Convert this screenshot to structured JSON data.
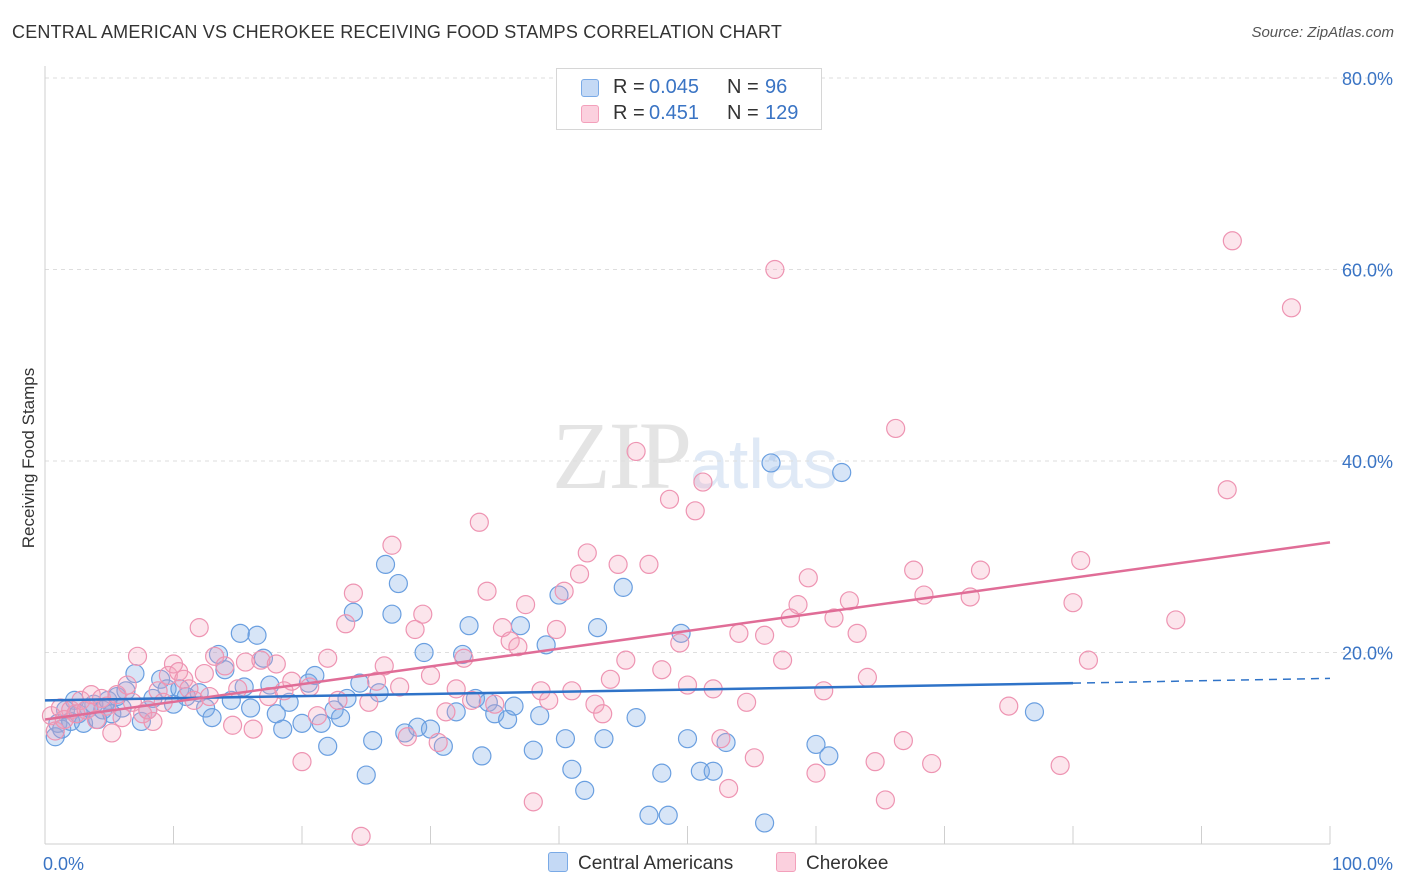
{
  "title": "CENTRAL AMERICAN VS CHEROKEE RECEIVING FOOD STAMPS CORRELATION CHART",
  "source": "Source: ZipAtlas.com",
  "watermark": {
    "zip": "ZIP",
    "atlas": "atlas"
  },
  "legend": {
    "rows": [
      {
        "r_label": "R =",
        "r_value": "0.045",
        "n_label": "N =",
        "n_value": "96",
        "color": "#7aaae6"
      },
      {
        "r_label": "R =",
        "r_value": "0.451",
        "n_label": "N =",
        "n_value": "129",
        "color": "#f3a0bb"
      }
    ]
  },
  "bottom_legend": [
    {
      "label": "Central Americans",
      "color": "#7aaae6"
    },
    {
      "label": "Cherokee",
      "color": "#f3a0bb"
    }
  ],
  "chart_data": {
    "type": "scatter",
    "title": "CENTRAL AMERICAN VS CHEROKEE RECEIVING FOOD STAMPS CORRELATION CHART",
    "xlabel": "",
    "ylabel": "Receiving Food Stamps",
    "xlim": [
      0,
      100
    ],
    "ylim": [
      0,
      80
    ],
    "x_tick_labels": [
      "0.0%",
      "100.0%"
    ],
    "y_tick_labels": [
      "20.0%",
      "40.0%",
      "60.0%",
      "80.0%"
    ],
    "y_ticks": [
      20,
      40,
      60,
      80
    ],
    "grid": "horizontal dashed",
    "legend_position": "top-center",
    "series": [
      {
        "name": "Central Americans",
        "color": "#7aaae6",
        "line_color": "#2f73c8",
        "trend": {
          "x0": 0,
          "y0": 15.0,
          "x1": 80,
          "y1": 16.8,
          "dashed_to": 100,
          "dashed_y": 17.3
        },
        "points": [
          [
            0.8,
            11.2
          ],
          [
            1.0,
            12.6
          ],
          [
            1.3,
            12.0
          ],
          [
            1.6,
            14.0
          ],
          [
            2.0,
            12.8
          ],
          [
            2.3,
            15.0
          ],
          [
            2.6,
            13.6
          ],
          [
            3.0,
            12.6
          ],
          [
            3.4,
            14.2
          ],
          [
            3.8,
            14.6
          ],
          [
            4.1,
            13.0
          ],
          [
            4.5,
            14.0
          ],
          [
            4.9,
            15.0
          ],
          [
            5.2,
            13.6
          ],
          [
            5.6,
            15.4
          ],
          [
            6.0,
            14.2
          ],
          [
            6.3,
            16.0
          ],
          [
            7.0,
            17.8
          ],
          [
            7.5,
            12.8
          ],
          [
            8.0,
            14.0
          ],
          [
            8.4,
            15.2
          ],
          [
            9.0,
            17.2
          ],
          [
            9.5,
            16.2
          ],
          [
            10.0,
            14.6
          ],
          [
            10.5,
            16.2
          ],
          [
            11.0,
            15.4
          ],
          [
            12.0,
            15.8
          ],
          [
            12.5,
            14.2
          ],
          [
            13.0,
            13.2
          ],
          [
            13.5,
            19.8
          ],
          [
            14.0,
            18.2
          ],
          [
            14.5,
            15.0
          ],
          [
            15.2,
            22.0
          ],
          [
            15.5,
            16.4
          ],
          [
            16.0,
            14.2
          ],
          [
            16.5,
            21.8
          ],
          [
            17.0,
            19.4
          ],
          [
            17.5,
            16.6
          ],
          [
            18.0,
            13.6
          ],
          [
            18.5,
            12.0
          ],
          [
            19.0,
            14.8
          ],
          [
            20.0,
            12.6
          ],
          [
            20.5,
            16.8
          ],
          [
            21.0,
            17.6
          ],
          [
            21.5,
            12.6
          ],
          [
            22.0,
            10.2
          ],
          [
            22.5,
            14.0
          ],
          [
            23.0,
            13.2
          ],
          [
            23.5,
            15.2
          ],
          [
            24.0,
            24.2
          ],
          [
            24.5,
            16.8
          ],
          [
            25.0,
            7.2
          ],
          [
            25.5,
            10.8
          ],
          [
            26.0,
            15.8
          ],
          [
            26.5,
            29.2
          ],
          [
            27.0,
            24.0
          ],
          [
            27.5,
            27.2
          ],
          [
            28.0,
            11.6
          ],
          [
            29.0,
            12.2
          ],
          [
            29.5,
            20.0
          ],
          [
            30.0,
            12.0
          ],
          [
            31.0,
            10.2
          ],
          [
            32.0,
            13.8
          ],
          [
            32.5,
            19.8
          ],
          [
            33.0,
            22.8
          ],
          [
            33.5,
            15.2
          ],
          [
            34.0,
            9.2
          ],
          [
            34.5,
            14.8
          ],
          [
            35.0,
            13.6
          ],
          [
            36.0,
            13.0
          ],
          [
            36.5,
            14.4
          ],
          [
            37.0,
            22.8
          ],
          [
            38.0,
            9.8
          ],
          [
            38.5,
            13.4
          ],
          [
            39.0,
            20.8
          ],
          [
            40.0,
            26.0
          ],
          [
            40.5,
            11.0
          ],
          [
            41.0,
            7.8
          ],
          [
            42.0,
            5.6
          ],
          [
            43.0,
            22.6
          ],
          [
            43.5,
            11.0
          ],
          [
            45.0,
            26.8
          ],
          [
            46.0,
            13.2
          ],
          [
            47.0,
            3.0
          ],
          [
            48.0,
            7.4
          ],
          [
            48.5,
            3.0
          ],
          [
            49.5,
            22.0
          ],
          [
            50.0,
            11.0
          ],
          [
            51.0,
            7.6
          ],
          [
            52.0,
            7.6
          ],
          [
            53.0,
            10.6
          ],
          [
            56.0,
            2.2
          ],
          [
            56.5,
            39.8
          ],
          [
            60.0,
            10.4
          ],
          [
            61.0,
            9.2
          ],
          [
            62.0,
            38.8
          ],
          [
            77.0,
            13.8
          ]
        ]
      },
      {
        "name": "Cherokee",
        "color": "#f3a0bb",
        "line_color": "#e06d97",
        "trend": {
          "x0": 0,
          "y0": 13.0,
          "x1": 100,
          "y1": 31.5
        },
        "points": [
          [
            0.5,
            13.4
          ],
          [
            0.8,
            11.8
          ],
          [
            1.2,
            14.2
          ],
          [
            1.5,
            13.0
          ],
          [
            2.0,
            14.0
          ],
          [
            2.4,
            13.6
          ],
          [
            2.8,
            15.0
          ],
          [
            3.2,
            14.0
          ],
          [
            3.6,
            15.6
          ],
          [
            4.0,
            13.0
          ],
          [
            4.4,
            15.2
          ],
          [
            4.8,
            14.4
          ],
          [
            5.2,
            11.6
          ],
          [
            5.6,
            15.6
          ],
          [
            6.0,
            13.2
          ],
          [
            6.4,
            16.6
          ],
          [
            6.8,
            14.8
          ],
          [
            7.2,
            19.6
          ],
          [
            7.6,
            13.6
          ],
          [
            8.0,
            14.0
          ],
          [
            8.4,
            12.8
          ],
          [
            8.8,
            16.0
          ],
          [
            9.2,
            14.8
          ],
          [
            9.6,
            17.6
          ],
          [
            10.0,
            18.8
          ],
          [
            10.4,
            18.0
          ],
          [
            10.8,
            17.2
          ],
          [
            11.2,
            16.2
          ],
          [
            11.6,
            15.0
          ],
          [
            12.0,
            22.6
          ],
          [
            12.4,
            17.8
          ],
          [
            12.8,
            15.4
          ],
          [
            13.2,
            19.6
          ],
          [
            14.0,
            18.6
          ],
          [
            14.6,
            12.4
          ],
          [
            15.0,
            16.2
          ],
          [
            15.6,
            19.0
          ],
          [
            16.2,
            12.0
          ],
          [
            16.8,
            19.2
          ],
          [
            17.4,
            15.4
          ],
          [
            18.0,
            18.8
          ],
          [
            18.6,
            16.0
          ],
          [
            19.2,
            17.0
          ],
          [
            20.0,
            8.6
          ],
          [
            20.6,
            16.4
          ],
          [
            21.2,
            13.4
          ],
          [
            22.0,
            19.4
          ],
          [
            22.8,
            15.0
          ],
          [
            23.4,
            23.0
          ],
          [
            24.0,
            26.2
          ],
          [
            24.6,
            0.8
          ],
          [
            25.2,
            14.8
          ],
          [
            25.8,
            17.0
          ],
          [
            26.4,
            18.6
          ],
          [
            27.0,
            31.2
          ],
          [
            27.6,
            16.4
          ],
          [
            28.2,
            11.2
          ],
          [
            28.8,
            22.4
          ],
          [
            29.4,
            24.0
          ],
          [
            30.0,
            17.6
          ],
          [
            30.6,
            10.6
          ],
          [
            31.2,
            13.8
          ],
          [
            32.0,
            16.2
          ],
          [
            32.6,
            19.4
          ],
          [
            33.2,
            15.0
          ],
          [
            33.8,
            33.6
          ],
          [
            34.4,
            26.4
          ],
          [
            35.0,
            14.6
          ],
          [
            35.6,
            22.6
          ],
          [
            36.2,
            21.2
          ],
          [
            36.8,
            20.6
          ],
          [
            37.4,
            25.0
          ],
          [
            38.0,
            4.4
          ],
          [
            38.6,
            16.0
          ],
          [
            39.2,
            15.0
          ],
          [
            39.8,
            22.4
          ],
          [
            40.4,
            26.4
          ],
          [
            41.0,
            16.0
          ],
          [
            41.6,
            28.2
          ],
          [
            42.2,
            30.4
          ],
          [
            42.8,
            14.6
          ],
          [
            43.4,
            13.6
          ],
          [
            44.0,
            17.2
          ],
          [
            44.6,
            29.2
          ],
          [
            45.2,
            19.2
          ],
          [
            46.0,
            41.0
          ],
          [
            47.0,
            29.2
          ],
          [
            48.0,
            18.2
          ],
          [
            48.6,
            36.0
          ],
          [
            49.4,
            21.0
          ],
          [
            50.0,
            16.6
          ],
          [
            50.6,
            34.8
          ],
          [
            51.2,
            37.8
          ],
          [
            52.0,
            16.2
          ],
          [
            52.6,
            11.0
          ],
          [
            53.2,
            5.8
          ],
          [
            54.0,
            22.0
          ],
          [
            54.6,
            14.8
          ],
          [
            55.2,
            9.0
          ],
          [
            56.0,
            21.8
          ],
          [
            56.8,
            60.0
          ],
          [
            57.4,
            19.2
          ],
          [
            58.0,
            23.6
          ],
          [
            58.6,
            25.0
          ],
          [
            59.4,
            27.8
          ],
          [
            60.0,
            7.4
          ],
          [
            60.6,
            16.0
          ],
          [
            61.4,
            23.6
          ],
          [
            62.6,
            25.4
          ],
          [
            63.2,
            22.0
          ],
          [
            64.0,
            17.4
          ],
          [
            64.6,
            8.6
          ],
          [
            65.4,
            4.6
          ],
          [
            66.2,
            43.4
          ],
          [
            66.8,
            10.8
          ],
          [
            67.6,
            28.6
          ],
          [
            68.4,
            26.0
          ],
          [
            69.0,
            8.4
          ],
          [
            72.0,
            25.8
          ],
          [
            72.8,
            28.6
          ],
          [
            75.0,
            14.4
          ],
          [
            79.0,
            8.2
          ],
          [
            80.0,
            25.2
          ],
          [
            80.6,
            29.6
          ],
          [
            81.2,
            19.2
          ],
          [
            88.0,
            23.4
          ],
          [
            92.0,
            37.0
          ],
          [
            92.4,
            63.0
          ],
          [
            97.0,
            56.0
          ]
        ]
      }
    ]
  }
}
